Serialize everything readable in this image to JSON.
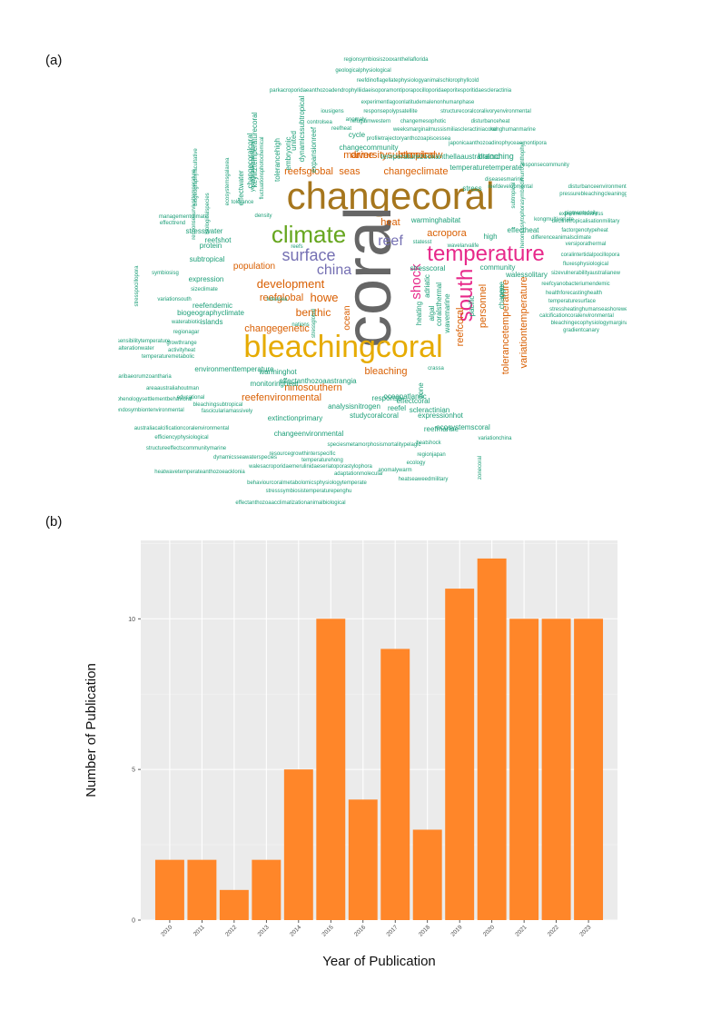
{
  "panel_a_label": "(a)",
  "panel_b_label": "(b)",
  "wordcloud": {
    "words": [
      {
        "text": "changecoral",
        "color": "#a6761d",
        "size": 42
      },
      {
        "text": "coral",
        "color": "#666666",
        "size": 72
      },
      {
        "text": "bleachingcoral",
        "color": "#e6ab02",
        "size": 34
      },
      {
        "text": "climate",
        "color": "#66a61e",
        "size": 26
      },
      {
        "text": "temperature",
        "color": "#e7298a",
        "size": 24
      },
      {
        "text": "south",
        "color": "#e7298a",
        "size": 24
      },
      {
        "text": "surface",
        "color": "#7570b3",
        "size": 18
      },
      {
        "text": "china",
        "color": "#7570b3",
        "size": 16
      },
      {
        "text": "reef",
        "color": "#7570b3",
        "size": 16
      },
      {
        "text": "shock",
        "color": "#e7298a",
        "size": 15
      },
      {
        "text": "development",
        "color": "#d95f02",
        "size": 13
      },
      {
        "text": "diversitysubtropical",
        "color": "#d95f02",
        "size": 11
      },
      {
        "text": "changeclimate",
        "color": "#d95f02",
        "size": 11
      },
      {
        "text": "islandnew",
        "color": "#d95f02",
        "size": 11
      },
      {
        "text": "reefsglobal",
        "color": "#d95f02",
        "size": 11
      },
      {
        "text": "seas",
        "color": "#d95f02",
        "size": 11
      },
      {
        "text": "marine",
        "color": "#d95f02",
        "size": 11
      },
      {
        "text": "heat",
        "color": "#d95f02",
        "size": 11
      },
      {
        "text": "acropora",
        "color": "#d95f02",
        "size": 11
      },
      {
        "text": "population",
        "color": "#d95f02",
        "size": 10
      },
      {
        "text": "howe",
        "color": "#d95f02",
        "size": 13
      },
      {
        "text": "benthic",
        "color": "#d95f02",
        "size": 12
      },
      {
        "text": "reefglobal",
        "color": "#d95f02",
        "size": 11
      },
      {
        "text": "changegenetic",
        "color": "#d95f02",
        "size": 11
      },
      {
        "text": "ocean",
        "color": "#d95f02",
        "size": 10
      },
      {
        "text": "personnel",
        "color": "#d95f02",
        "size": 11
      },
      {
        "text": "reefcoral",
        "color": "#d95f02",
        "size": 11
      },
      {
        "text": "tolerancetemperature",
        "color": "#d95f02",
        "size": 11
      },
      {
        "text": "variationtemperature",
        "color": "#d95f02",
        "size": 11
      },
      {
        "text": "bleaching",
        "color": "#d95f02",
        "size": 11
      },
      {
        "text": "ninosouthern",
        "color": "#d95f02",
        "size": 11
      },
      {
        "text": "reefenvironmental",
        "color": "#d95f02",
        "size": 11
      },
      {
        "text": "expansionreef",
        "color": "#1b9e77",
        "size": 8
      },
      {
        "text": "regionsymbiosiszooxanthellaflorida",
        "color": "#1b9e77",
        "size": 6
      },
      {
        "text": "geologicalphysiological",
        "color": "#1b9e77",
        "size": 6
      },
      {
        "text": "reefdinoflagellatephysiologyanimalschlorophyllcold",
        "color": "#1b9e77",
        "size": 6
      },
      {
        "text": "parkacroporidaeanthozoadendrophylliidaeisoporamontiporapocilloporidaeporitesporitidaescleractinia",
        "color": "#1b9e77",
        "size": 6
      },
      {
        "text": "experimentlagoonlatitudemalenonhumanphase",
        "color": "#1b9e77",
        "size": 6
      },
      {
        "text": "responsepolypsatellite",
        "color": "#1b9e77",
        "size": 6
      },
      {
        "text": "structurecoralcoralivoryenvironmental",
        "color": "#1b9e77",
        "size": 6
      },
      {
        "text": "refugiumwestern",
        "color": "#1b9e77",
        "size": 6
      },
      {
        "text": "changemesophotic",
        "color": "#1b9e77",
        "size": 6
      },
      {
        "text": "disturbanceheat",
        "color": "#1b9e77",
        "size": 6
      },
      {
        "text": "weeksmarginalmussismiliascleractiniacoral",
        "color": "#1b9e77",
        "size": 6
      },
      {
        "text": "konghumanmarine",
        "color": "#1b9e77",
        "size": 6
      },
      {
        "text": "profiletrajectoryanthozoapiscessea",
        "color": "#1b9e77",
        "size": 6
      },
      {
        "text": "changecommunity",
        "color": "#1b9e77",
        "size": 8
      },
      {
        "text": "japonicaanthozoadinophyceaemontipora",
        "color": "#1b9e77",
        "size": 6
      },
      {
        "text": "temperaturezooxanthellaaustralialord",
        "color": "#1b9e77",
        "size": 8
      },
      {
        "text": "branching",
        "color": "#1b9e77",
        "size": 9
      },
      {
        "text": "responsecommunity",
        "color": "#1b9e77",
        "size": 6
      },
      {
        "text": "temperaturetemperate",
        "color": "#1b9e77",
        "size": 8
      },
      {
        "text": "diseasesmarine",
        "color": "#1b9e77",
        "size": 6
      },
      {
        "text": "stress",
        "color": "#1b9e77",
        "size": 8
      },
      {
        "text": "reefdevelopmental",
        "color": "#1b9e77",
        "size": 6
      },
      {
        "text": "disturbanceenvironmental",
        "color": "#1b9e77",
        "size": 6
      },
      {
        "text": "pigmentsdaily",
        "color": "#1b9e77",
        "size": 6
      },
      {
        "text": "pressurebleachingcleaningglobal",
        "color": "#1b9e77",
        "size": 6
      },
      {
        "text": "experimentsstress",
        "color": "#1b9e77",
        "size": 6
      },
      {
        "text": "declinetropicalisationmilitary",
        "color": "#1b9e77",
        "size": 6
      },
      {
        "text": "kongmultivariate",
        "color": "#1b9e77",
        "size": 6
      },
      {
        "text": "warminghabitat",
        "color": "#1b9e77",
        "size": 8
      },
      {
        "text": "effectheat",
        "color": "#1b9e77",
        "size": 8
      },
      {
        "text": "factorgenotypeheat",
        "color": "#1b9e77",
        "size": 6
      },
      {
        "text": "high",
        "color": "#1b9e77",
        "size": 8
      },
      {
        "text": "differenceanimalsclimate",
        "color": "#1b9e77",
        "size": 6
      },
      {
        "text": "statesst",
        "color": "#1b9e77",
        "size": 6
      },
      {
        "text": "wavelarvalife",
        "color": "#1b9e77",
        "size": 6
      },
      {
        "text": "versiporathermal",
        "color": "#1b9e77",
        "size": 6
      },
      {
        "text": "coralintertidalpocillopora",
        "color": "#1b9e77",
        "size": 6
      },
      {
        "text": "fluxesphysiological",
        "color": "#1b9e77",
        "size": 6
      },
      {
        "text": "community",
        "color": "#1b9e77",
        "size": 8
      },
      {
        "text": "stresscoral",
        "color": "#1b9e77",
        "size": 8
      },
      {
        "text": "walessolitary",
        "color": "#1b9e77",
        "size": 8
      },
      {
        "text": "sizevulnerabilityaustralianew",
        "color": "#1b9e77",
        "size": 6
      },
      {
        "text": "reefcyanobacteriumendemic",
        "color": "#1b9e77",
        "size": 6
      },
      {
        "text": "healthforecastinghealth",
        "color": "#1b9e77",
        "size": 6
      },
      {
        "text": "temperaturesurface",
        "color": "#1b9e77",
        "size": 6
      },
      {
        "text": "stressheatinghumanseashorewestern",
        "color": "#1b9e77",
        "size": 6
      },
      {
        "text": "calcificationcoralenvironmental",
        "color": "#1b9e77",
        "size": 6
      },
      {
        "text": "bleachingecophysiologymarginal",
        "color": "#1b9e77",
        "size": 6
      },
      {
        "text": "gradientcanary",
        "color": "#1b9e77",
        "size": 6
      },
      {
        "text": "managementclimate",
        "color": "#1b9e77",
        "size": 6
      },
      {
        "text": "effecttrend",
        "color": "#1b9e77",
        "size": 6
      },
      {
        "text": "stresswater",
        "color": "#1b9e77",
        "size": 8
      },
      {
        "text": "reefshot",
        "color": "#1b9e77",
        "size": 8
      },
      {
        "text": "protein",
        "color": "#1b9e77",
        "size": 8
      },
      {
        "text": "subtropical",
        "color": "#1b9e77",
        "size": 8
      },
      {
        "text": "symbiosisg",
        "color": "#1b9e77",
        "size": 6
      },
      {
        "text": "expression",
        "color": "#1b9e77",
        "size": 8
      },
      {
        "text": "sizeclimate",
        "color": "#1b9e77",
        "size": 6
      },
      {
        "text": "variationsouth",
        "color": "#1b9e77",
        "size": 6
      },
      {
        "text": "reefendemic",
        "color": "#1b9e77",
        "size": 8
      },
      {
        "text": "biogeographyclimate",
        "color": "#1b9e77",
        "size": 8
      },
      {
        "text": "islands",
        "color": "#1b9e77",
        "size": 8
      },
      {
        "text": "sensibilitytemperature",
        "color": "#1b9e77",
        "size": 6
      },
      {
        "text": "waterabiotic",
        "color": "#1b9e77",
        "size": 6
      },
      {
        "text": "regionagar",
        "color": "#1b9e77",
        "size": 6
      },
      {
        "text": "alterationwater",
        "color": "#1b9e77",
        "size": 6
      },
      {
        "text": "growthrange",
        "color": "#1b9e77",
        "size": 6
      },
      {
        "text": "activityheat",
        "color": "#1b9e77",
        "size": 6
      },
      {
        "text": "temperaturemetabolic",
        "color": "#1b9e77",
        "size": 6
      },
      {
        "text": "environmenttemperature",
        "color": "#1b9e77",
        "size": 8
      },
      {
        "text": "warminghot",
        "color": "#1b9e77",
        "size": 8
      },
      {
        "text": "caribaeorumzoantharia",
        "color": "#1b9e77",
        "size": 6
      },
      {
        "text": "monitoringheat",
        "color": "#1b9e77",
        "size": 8
      },
      {
        "text": "areaaustraliahoutman",
        "color": "#1b9e77",
        "size": 6
      },
      {
        "text": "educational",
        "color": "#1b9e77",
        "size": 6
      },
      {
        "text": "phenologysettlementbehavioral",
        "color": "#1b9e77",
        "size": 6
      },
      {
        "text": "bleachingsubtropical",
        "color": "#1b9e77",
        "size": 6
      },
      {
        "text": "reefendosymbiontenvironmental",
        "color": "#1b9e77",
        "size": 6
      },
      {
        "text": "fasciculariamassively",
        "color": "#1b9e77",
        "size": 6
      },
      {
        "text": "effectanthozoaastrangia",
        "color": "#1b9e77",
        "size": 8
      },
      {
        "text": "analysisnitrogen",
        "color": "#1b9e77",
        "size": 8
      },
      {
        "text": "extinctionprimary",
        "color": "#1b9e77",
        "size": 8
      },
      {
        "text": "studycoralcoral",
        "color": "#1b9e77",
        "size": 8
      },
      {
        "text": "oceanatlantic",
        "color": "#1b9e77",
        "size": 8
      },
      {
        "text": "effectcoral",
        "color": "#1b9e77",
        "size": 8
      },
      {
        "text": "scleractinian",
        "color": "#1b9e77",
        "size": 8
      },
      {
        "text": "reefel",
        "color": "#1b9e77",
        "size": 8
      },
      {
        "text": "expressionhot",
        "color": "#1b9e77",
        "size": 8
      },
      {
        "text": "response",
        "color": "#1b9e77",
        "size": 8
      },
      {
        "text": "reefmarine",
        "color": "#1b9e77",
        "size": 8
      },
      {
        "text": "ecosystemscoral",
        "color": "#1b9e77",
        "size": 8
      },
      {
        "text": "australiacalcificationcoralenvironmental",
        "color": "#1b9e77",
        "size": 6
      },
      {
        "text": "changeenvironmental",
        "color": "#1b9e77",
        "size": 8
      },
      {
        "text": "efficiencyphysiological",
        "color": "#1b9e77",
        "size": 6
      },
      {
        "text": "structureeffectscommunitymarine",
        "color": "#1b9e77",
        "size": 6
      },
      {
        "text": "speciesmetamorphosismortalitypelagic",
        "color": "#1b9e77",
        "size": 6
      },
      {
        "text": "resourcegrowthinterspecific",
        "color": "#1b9e77",
        "size": 6
      },
      {
        "text": "dynamicsseawaterspecies",
        "color": "#1b9e77",
        "size": 6
      },
      {
        "text": "temperaturehong",
        "color": "#1b9e77",
        "size": 6
      },
      {
        "text": "walesacroporidaemerulinidaeseriatoporastylophora",
        "color": "#1b9e77",
        "size": 6
      },
      {
        "text": "heatshock",
        "color": "#1b9e77",
        "size": 6
      },
      {
        "text": "regionjapan",
        "color": "#1b9e77",
        "size": 6
      },
      {
        "text": "ecology",
        "color": "#1b9e77",
        "size": 6
      },
      {
        "text": "anomalywarm",
        "color": "#1b9e77",
        "size": 6
      },
      {
        "text": "heatseaweedmilitary",
        "color": "#1b9e77",
        "size": 6
      },
      {
        "text": "heatwavetemperateanthozoeacklonia",
        "color": "#1b9e77",
        "size": 6
      },
      {
        "text": "adaptationmolecular",
        "color": "#1b9e77",
        "size": 6
      },
      {
        "text": "behaviourcoralmetabolomicsphysiologytemperate",
        "color": "#1b9e77",
        "size": 6
      },
      {
        "text": "stresssymbiosistemperaturepenghu",
        "color": "#1b9e77",
        "size": 6
      },
      {
        "text": "effectanthozoaacclimatizationanimalbiological",
        "color": "#1b9e77",
        "size": 6
      },
      {
        "text": "crassa",
        "color": "#1b9e77",
        "size": 6
      },
      {
        "text": "variationchina",
        "color": "#1b9e77",
        "size": 6
      },
      {
        "text": "anomaly",
        "color": "#1b9e77",
        "size": 6
      },
      {
        "text": "controlsea",
        "color": "#1b9e77",
        "size": 6
      },
      {
        "text": "reefheat",
        "color": "#1b9e77",
        "size": 6
      },
      {
        "text": "iousigens",
        "color": "#1b9e77",
        "size": 6
      },
      {
        "text": "cycle",
        "color": "#1b9e77",
        "size": 8
      },
      {
        "text": "nations",
        "color": "#1b9e77",
        "size": 6
      },
      {
        "text": "reefs",
        "color": "#1b9e77",
        "size": 6
      },
      {
        "text": "luteasea",
        "color": "#1b9e77",
        "size": 6
      },
      {
        "text": "density",
        "color": "#1b9e77",
        "size": 6
      },
      {
        "text": "tolerance",
        "color": "#1b9e77",
        "size": 6
      },
      {
        "text": "effectwater",
        "color": "#1b9e77",
        "size": 8
      },
      {
        "text": "changecoralcoral",
        "color": "#1b9e77",
        "size": 8
      },
      {
        "text": "keylitztemperaturecoral",
        "color": "#1b9e77",
        "size": 8
      },
      {
        "text": "tolerancehigh",
        "color": "#1b9e77",
        "size": 8
      },
      {
        "text": "embryonic",
        "color": "#1b9e77",
        "size": 8
      },
      {
        "text": "united",
        "color": "#1b9e77",
        "size": 8
      },
      {
        "text": "dynamicssubtropical",
        "color": "#1b9e77",
        "size": 8
      },
      {
        "text": "heating",
        "color": "#1b9e77",
        "size": 8
      },
      {
        "text": "algal",
        "color": "#1b9e77",
        "size": 8
      },
      {
        "text": "adriatic",
        "color": "#1b9e77",
        "size": 8
      },
      {
        "text": "coralsthermal",
        "color": "#1b9e77",
        "size": 8
      },
      {
        "text": "wavemarine",
        "color": "#1b9e77",
        "size": 8
      },
      {
        "text": "pacific",
        "color": "#1b9e77",
        "size": 8
      },
      {
        "text": "change",
        "color": "#1b9e77",
        "size": 8
      },
      {
        "text": "gene",
        "color": "#1b9e77",
        "size": 8
      },
      {
        "text": "zone",
        "color": "#1b9e77",
        "size": 8
      },
      {
        "text": "stressglobal",
        "color": "#1b9e77",
        "size": 6
      },
      {
        "text": "zonecoral",
        "color": "#1b9e77",
        "size": 6
      },
      {
        "text": "subtropical",
        "color": "#1b9e77",
        "size": 6
      },
      {
        "text": "heronsissiytophorasymbiodiniumxanthophyl",
        "color": "#1b9e77",
        "size": 6
      },
      {
        "text": "stresspocillopora",
        "color": "#1b9e77",
        "size": 6
      },
      {
        "text": "biogeographyfacultative",
        "color": "#1b9e77",
        "size": 6
      },
      {
        "text": "responsesurvivaltemperature",
        "color": "#1b9e77",
        "size": 6
      },
      {
        "text": "biologicalspecies",
        "color": "#1b9e77",
        "size": 6
      },
      {
        "text": "ecosystemsgalaxea",
        "color": "#1b9e77",
        "size": 6
      },
      {
        "text": "fluctuationsphotochemical",
        "color": "#1b9e77",
        "size": 6
      },
      {
        "text": "younglitztemperature",
        "color": "#1b9e77",
        "size": 6
      }
    ]
  },
  "chart_data": {
    "type": "bar",
    "categories": [
      "2010",
      "2011",
      "2012",
      "2013",
      "2014",
      "2015",
      "2016",
      "2017",
      "2018",
      "2019",
      "2020",
      "2021",
      "2022",
      "2023"
    ],
    "values": [
      2,
      2,
      1,
      2,
      5,
      10,
      4,
      9,
      3,
      11,
      12,
      10,
      10,
      10
    ],
    "xlabel": "Year of Publication",
    "ylabel": "Number of Publication",
    "ylim": [
      0,
      12.6
    ],
    "yticks": [
      0,
      5,
      10
    ],
    "yticklabels": [
      "0",
      "5",
      "10"
    ],
    "bar_color": "#ff8629",
    "panel_background": "#ebebeb",
    "grid": true
  }
}
